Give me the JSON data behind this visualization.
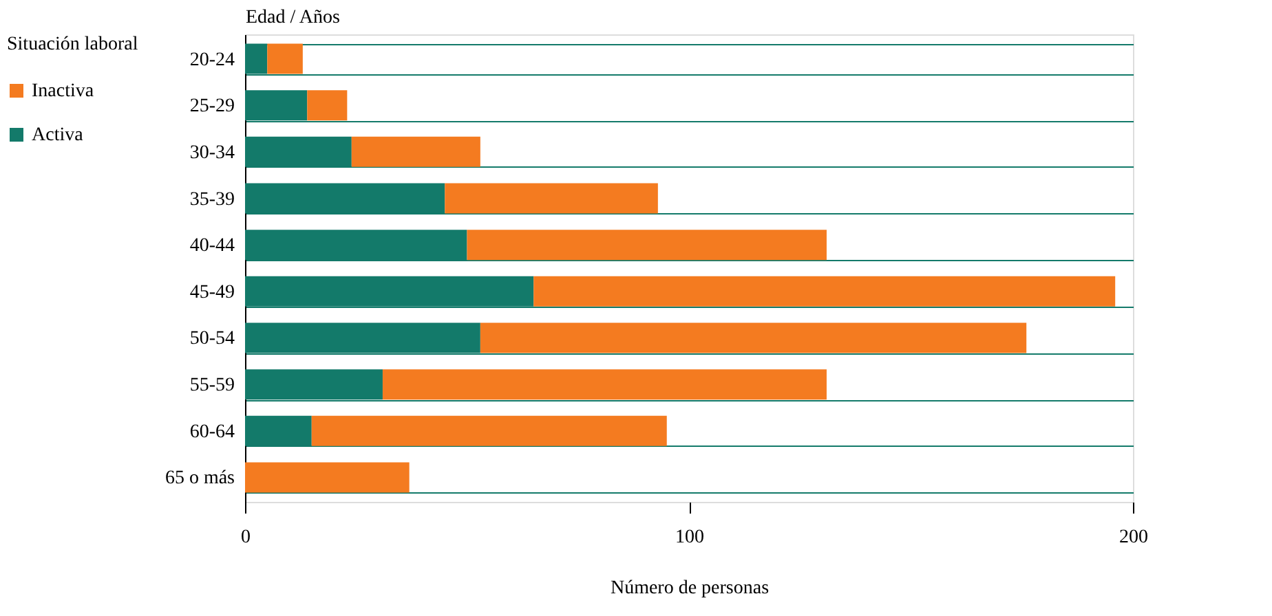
{
  "chart_data": {
    "type": "bar",
    "orientation": "horizontal",
    "stacked": true,
    "xlabel": "Número de personas",
    "ylabel": "Edad / Años",
    "legend_title": "Situación laboral",
    "legend": "left",
    "grid": "y",
    "categories": [
      "20-24",
      "25-29",
      "30-34",
      "35-39",
      "40-44",
      "45-49",
      "50-54",
      "55-59",
      "60-64",
      "65 o más"
    ],
    "series": [
      {
        "name": "Activa",
        "color": "#137a6a",
        "values": [
          5,
          14,
          24,
          45,
          50,
          65,
          53,
          31,
          15,
          0
        ]
      },
      {
        "name": "Inactiva",
        "color": "#f47b20",
        "values": [
          8,
          9,
          29,
          48,
          81,
          131,
          123,
          100,
          80,
          37
        ]
      }
    ],
    "xlim": [
      0,
      200
    ],
    "xticks": [
      0,
      100,
      200
    ]
  }
}
